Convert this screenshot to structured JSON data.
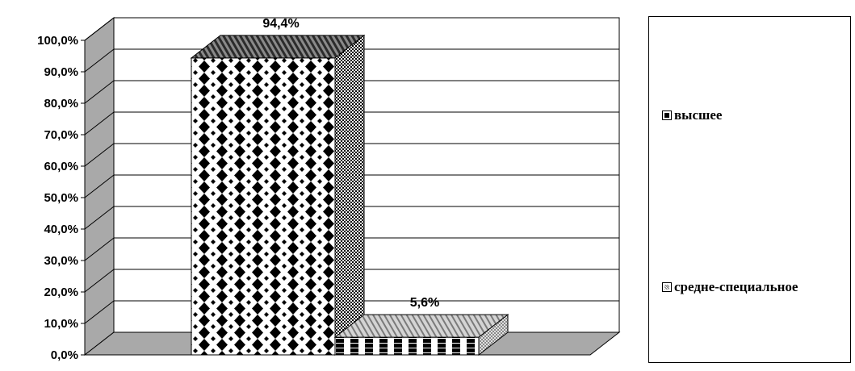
{
  "chart_data": {
    "type": "bar",
    "categories": [
      "высшее",
      "средне-специальное"
    ],
    "series": [
      {
        "name": "высшее",
        "values": [
          94.4,
          null
        ]
      },
      {
        "name": "средне-специальное",
        "values": [
          null,
          5.6
        ]
      }
    ],
    "data_labels": [
      "94,4%",
      "5,6%"
    ],
    "y_ticks": [
      0,
      10,
      20,
      30,
      40,
      50,
      60,
      70,
      80,
      90,
      100
    ],
    "y_tick_labels": [
      "0,0%",
      "10,0%",
      "20,0%",
      "30,0%",
      "40,0%",
      "50,0%",
      "60,0%",
      "70,0%",
      "80,0%",
      "90,0%",
      "100,0%"
    ],
    "ylim": [
      0,
      100
    ],
    "title": "",
    "xlabel": "",
    "ylabel": "",
    "grid": true,
    "legend_position": "right",
    "style": "3d-column"
  },
  "legend": {
    "items": [
      {
        "label": "высшее",
        "swatch": "dark"
      },
      {
        "label": "средне-специальное",
        "swatch": "light"
      }
    ]
  },
  "colors": {
    "wall": "#a9a9a9",
    "floor": "#a9a9a9",
    "gridline": "#000000",
    "bar_pattern": "#000000"
  }
}
